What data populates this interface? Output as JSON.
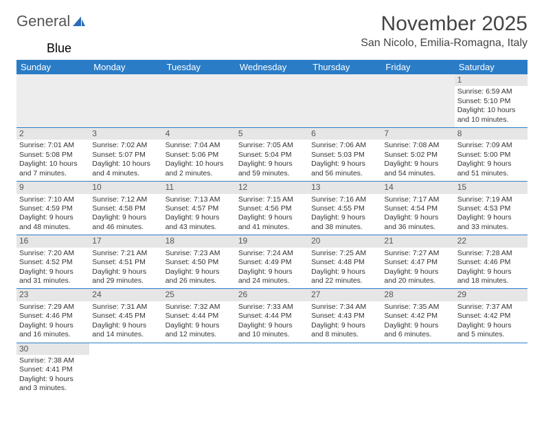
{
  "logo": {
    "text1": "General",
    "text2": "Blue"
  },
  "title": "November 2025",
  "location": "San Nicolo, Emilia-Romagna, Italy",
  "colors": {
    "header_bg": "#2a7cc7",
    "header_fg": "#ffffff",
    "daynum_bg": "#e6e6e6",
    "border": "#2a7cc7",
    "blank_bg": "#ededed"
  },
  "weekdays": [
    "Sunday",
    "Monday",
    "Tuesday",
    "Wednesday",
    "Thursday",
    "Friday",
    "Saturday"
  ],
  "weeks": [
    [
      null,
      null,
      null,
      null,
      null,
      null,
      {
        "n": "1",
        "sr": "Sunrise: 6:59 AM",
        "ss": "Sunset: 5:10 PM",
        "dl": "Daylight: 10 hours and 10 minutes."
      }
    ],
    [
      {
        "n": "2",
        "sr": "Sunrise: 7:01 AM",
        "ss": "Sunset: 5:08 PM",
        "dl": "Daylight: 10 hours and 7 minutes."
      },
      {
        "n": "3",
        "sr": "Sunrise: 7:02 AM",
        "ss": "Sunset: 5:07 PM",
        "dl": "Daylight: 10 hours and 4 minutes."
      },
      {
        "n": "4",
        "sr": "Sunrise: 7:04 AM",
        "ss": "Sunset: 5:06 PM",
        "dl": "Daylight: 10 hours and 2 minutes."
      },
      {
        "n": "5",
        "sr": "Sunrise: 7:05 AM",
        "ss": "Sunset: 5:04 PM",
        "dl": "Daylight: 9 hours and 59 minutes."
      },
      {
        "n": "6",
        "sr": "Sunrise: 7:06 AM",
        "ss": "Sunset: 5:03 PM",
        "dl": "Daylight: 9 hours and 56 minutes."
      },
      {
        "n": "7",
        "sr": "Sunrise: 7:08 AM",
        "ss": "Sunset: 5:02 PM",
        "dl": "Daylight: 9 hours and 54 minutes."
      },
      {
        "n": "8",
        "sr": "Sunrise: 7:09 AM",
        "ss": "Sunset: 5:00 PM",
        "dl": "Daylight: 9 hours and 51 minutes."
      }
    ],
    [
      {
        "n": "9",
        "sr": "Sunrise: 7:10 AM",
        "ss": "Sunset: 4:59 PM",
        "dl": "Daylight: 9 hours and 48 minutes."
      },
      {
        "n": "10",
        "sr": "Sunrise: 7:12 AM",
        "ss": "Sunset: 4:58 PM",
        "dl": "Daylight: 9 hours and 46 minutes."
      },
      {
        "n": "11",
        "sr": "Sunrise: 7:13 AM",
        "ss": "Sunset: 4:57 PM",
        "dl": "Daylight: 9 hours and 43 minutes."
      },
      {
        "n": "12",
        "sr": "Sunrise: 7:15 AM",
        "ss": "Sunset: 4:56 PM",
        "dl": "Daylight: 9 hours and 41 minutes."
      },
      {
        "n": "13",
        "sr": "Sunrise: 7:16 AM",
        "ss": "Sunset: 4:55 PM",
        "dl": "Daylight: 9 hours and 38 minutes."
      },
      {
        "n": "14",
        "sr": "Sunrise: 7:17 AM",
        "ss": "Sunset: 4:54 PM",
        "dl": "Daylight: 9 hours and 36 minutes."
      },
      {
        "n": "15",
        "sr": "Sunrise: 7:19 AM",
        "ss": "Sunset: 4:53 PM",
        "dl": "Daylight: 9 hours and 33 minutes."
      }
    ],
    [
      {
        "n": "16",
        "sr": "Sunrise: 7:20 AM",
        "ss": "Sunset: 4:52 PM",
        "dl": "Daylight: 9 hours and 31 minutes."
      },
      {
        "n": "17",
        "sr": "Sunrise: 7:21 AM",
        "ss": "Sunset: 4:51 PM",
        "dl": "Daylight: 9 hours and 29 minutes."
      },
      {
        "n": "18",
        "sr": "Sunrise: 7:23 AM",
        "ss": "Sunset: 4:50 PM",
        "dl": "Daylight: 9 hours and 26 minutes."
      },
      {
        "n": "19",
        "sr": "Sunrise: 7:24 AM",
        "ss": "Sunset: 4:49 PM",
        "dl": "Daylight: 9 hours and 24 minutes."
      },
      {
        "n": "20",
        "sr": "Sunrise: 7:25 AM",
        "ss": "Sunset: 4:48 PM",
        "dl": "Daylight: 9 hours and 22 minutes."
      },
      {
        "n": "21",
        "sr": "Sunrise: 7:27 AM",
        "ss": "Sunset: 4:47 PM",
        "dl": "Daylight: 9 hours and 20 minutes."
      },
      {
        "n": "22",
        "sr": "Sunrise: 7:28 AM",
        "ss": "Sunset: 4:46 PM",
        "dl": "Daylight: 9 hours and 18 minutes."
      }
    ],
    [
      {
        "n": "23",
        "sr": "Sunrise: 7:29 AM",
        "ss": "Sunset: 4:46 PM",
        "dl": "Daylight: 9 hours and 16 minutes."
      },
      {
        "n": "24",
        "sr": "Sunrise: 7:31 AM",
        "ss": "Sunset: 4:45 PM",
        "dl": "Daylight: 9 hours and 14 minutes."
      },
      {
        "n": "25",
        "sr": "Sunrise: 7:32 AM",
        "ss": "Sunset: 4:44 PM",
        "dl": "Daylight: 9 hours and 12 minutes."
      },
      {
        "n": "26",
        "sr": "Sunrise: 7:33 AM",
        "ss": "Sunset: 4:44 PM",
        "dl": "Daylight: 9 hours and 10 minutes."
      },
      {
        "n": "27",
        "sr": "Sunrise: 7:34 AM",
        "ss": "Sunset: 4:43 PM",
        "dl": "Daylight: 9 hours and 8 minutes."
      },
      {
        "n": "28",
        "sr": "Sunrise: 7:35 AM",
        "ss": "Sunset: 4:42 PM",
        "dl": "Daylight: 9 hours and 6 minutes."
      },
      {
        "n": "29",
        "sr": "Sunrise: 7:37 AM",
        "ss": "Sunset: 4:42 PM",
        "dl": "Daylight: 9 hours and 5 minutes."
      }
    ],
    [
      {
        "n": "30",
        "sr": "Sunrise: 7:38 AM",
        "ss": "Sunset: 4:41 PM",
        "dl": "Daylight: 9 hours and 3 minutes."
      },
      null,
      null,
      null,
      null,
      null,
      null
    ]
  ]
}
